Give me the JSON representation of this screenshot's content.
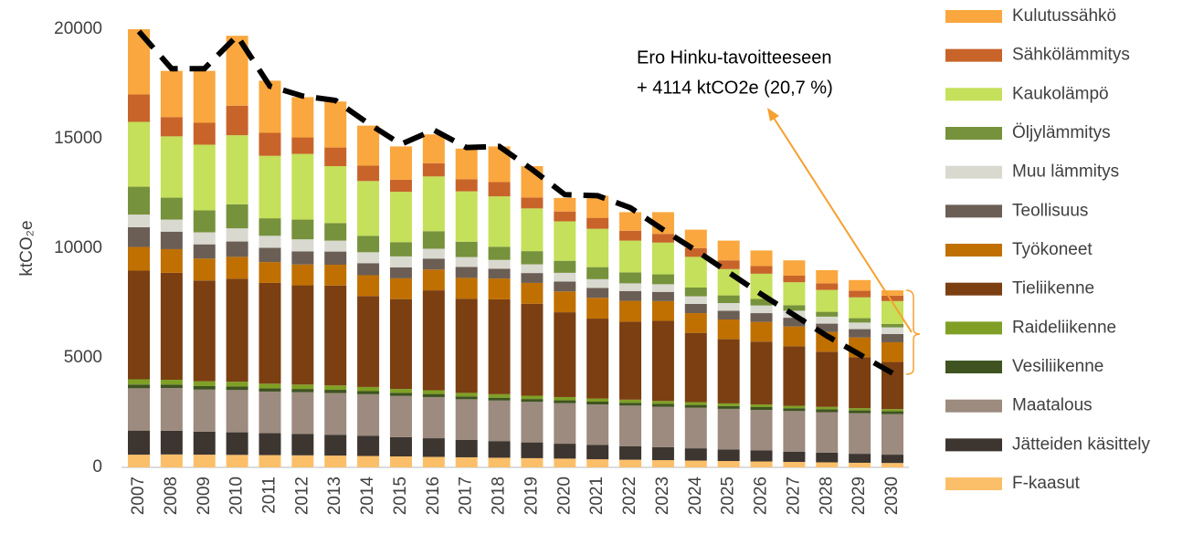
{
  "chart_data": {
    "type": "stacked_bar",
    "ylabel": "ktCO₂e",
    "categories": [
      "2007",
      "2008",
      "2009",
      "2010",
      "2011",
      "2012",
      "2013",
      "2014",
      "2015",
      "2016",
      "2017",
      "2018",
      "2019",
      "2020",
      "2021",
      "2022",
      "2023",
      "2024",
      "2025",
      "2026",
      "2027",
      "2028",
      "2029",
      "2030"
    ],
    "ylim": [
      0,
      20000
    ],
    "yticks": [
      0,
      5000,
      10000,
      15000,
      20000
    ],
    "series": [
      {
        "name": "F-kaasut",
        "color": "#fbbf6a",
        "values": [
          580,
          590,
          580,
          570,
          560,
          550,
          540,
          520,
          500,
          480,
          460,
          440,
          420,
          400,
          370,
          350,
          330,
          310,
          290,
          270,
          250,
          230,
          210,
          200
        ]
      },
      {
        "name": "Jätteiden käsittely",
        "color": "#3c3530",
        "values": [
          1100,
          1080,
          1050,
          1030,
          1000,
          980,
          950,
          920,
          880,
          850,
          800,
          760,
          720,
          680,
          650,
          620,
          590,
          560,
          530,
          500,
          470,
          440,
          410,
          380
        ]
      },
      {
        "name": "Maatalous",
        "color": "#9c8b7e",
        "values": [
          1930,
          1950,
          1920,
          1930,
          1900,
          1900,
          1900,
          1900,
          1880,
          1880,
          1850,
          1850,
          1850,
          1850,
          1850,
          1850,
          1850,
          1850,
          1850,
          1850,
          1850,
          1850,
          1850,
          1850
        ]
      },
      {
        "name": "Vesiliikenne",
        "color": "#3f5320",
        "values": [
          170,
          160,
          160,
          160,
          150,
          150,
          150,
          140,
          140,
          140,
          130,
          130,
          130,
          130,
          130,
          130,
          130,
          130,
          130,
          130,
          130,
          130,
          130,
          130
        ]
      },
      {
        "name": "Raideliikenne",
        "color": "#7fa025",
        "values": [
          240,
          220,
          220,
          220,
          210,
          200,
          200,
          190,
          180,
          170,
          160,
          160,
          150,
          150,
          140,
          140,
          130,
          130,
          120,
          120,
          110,
          110,
          100,
          100
        ]
      },
      {
        "name": "Tieliikenne",
        "color": "#7b3f12",
        "values": [
          4960,
          4880,
          4600,
          4700,
          4600,
          4530,
          4560,
          4150,
          4100,
          4560,
          4300,
          4330,
          4200,
          3870,
          3650,
          3560,
          3660,
          3160,
          2930,
          2870,
          2720,
          2520,
          2330,
          2150
        ]
      },
      {
        "name": "Työkoneet",
        "color": "#c07000",
        "values": [
          1080,
          1080,
          1000,
          1000,
          950,
          950,
          950,
          950,
          950,
          950,
          950,
          950,
          950,
          950,
          950,
          950,
          900,
          900,
          900,
          900,
          900,
          900,
          900,
          900
        ]
      },
      {
        "name": "Teollisuus",
        "color": "#6b5e55",
        "values": [
          900,
          800,
          650,
          700,
          650,
          600,
          600,
          550,
          500,
          500,
          500,
          450,
          450,
          450,
          450,
          450,
          420,
          420,
          400,
          400,
          400,
          380,
          380,
          380
        ]
      },
      {
        "name": "Muu lämmitys",
        "color": "#d9d9d0",
        "values": [
          580,
          550,
          550,
          600,
          550,
          550,
          500,
          500,
          500,
          450,
          450,
          400,
          400,
          400,
          400,
          350,
          350,
          350,
          350,
          350,
          320,
          320,
          300,
          300
        ]
      },
      {
        "name": "Öljylämmitys",
        "color": "#76923c",
        "values": [
          1270,
          1000,
          1000,
          1100,
          800,
          900,
          800,
          750,
          650,
          800,
          700,
          600,
          600,
          550,
          550,
          500,
          450,
          400,
          350,
          300,
          250,
          220,
          200,
          160
        ]
      },
      {
        "name": "Kaukolämpö",
        "color": "#c5e05a",
        "values": [
          2960,
          2800,
          3000,
          3150,
          2850,
          3000,
          2600,
          2500,
          2300,
          2500,
          2300,
          2300,
          1950,
          1800,
          1750,
          1450,
          1450,
          1400,
          1200,
          1150,
          1050,
          1000,
          950,
          1040
        ]
      },
      {
        "name": "Sähkölämmitys",
        "color": "#c8642a",
        "values": [
          1250,
          880,
          1000,
          1350,
          1050,
          750,
          850,
          700,
          550,
          600,
          550,
          650,
          500,
          450,
          500,
          450,
          400,
          400,
          400,
          350,
          300,
          300,
          300,
          250
        ]
      },
      {
        "name": "Kulutussähkö",
        "color": "#f9a73e",
        "values": [
          2980,
          2110,
          2370,
          3190,
          2380,
          1840,
          2100,
          1830,
          1520,
          1320,
          1400,
          1630,
          1430,
          620,
          1010,
          850,
          990,
          840,
          900,
          710,
          700,
          600,
          490,
          240
        ]
      }
    ],
    "target": {
      "color": "#000000",
      "values": [
        19900,
        18200,
        18200,
        19700,
        17400,
        16950,
        16750,
        15700,
        14750,
        15400,
        14600,
        14650,
        13600,
        12450,
        12400,
        11850,
        10850,
        9900,
        8900,
        7900,
        6950,
        6000,
        5150,
        4300
      ]
    },
    "annotation": [
      "Ero Hinku-tavoitteeseen",
      "+ 4114 ktCO2e (20,7 %)"
    ]
  }
}
